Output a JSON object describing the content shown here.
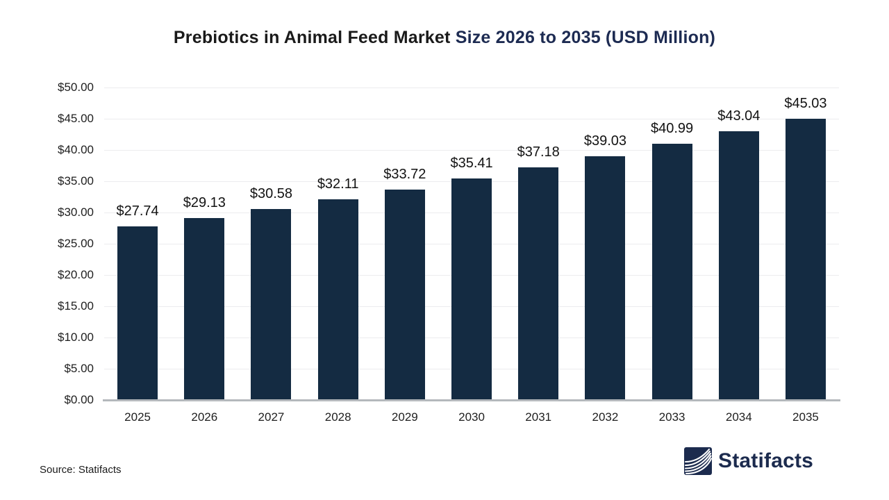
{
  "title": {
    "part1": "Prebiotics in Animal Feed Market ",
    "part2": "Size 2026 to 2035 (USD Million)"
  },
  "chart_data": {
    "type": "bar",
    "title": "Prebiotics in Animal Feed Market Size 2026 to 2035 (USD Million)",
    "categories": [
      "2025",
      "2026",
      "2027",
      "2028",
      "2029",
      "2030",
      "2031",
      "2032",
      "2033",
      "2034",
      "2035"
    ],
    "values": [
      27.74,
      29.13,
      30.58,
      32.11,
      33.72,
      35.41,
      37.18,
      39.03,
      40.99,
      43.04,
      45.03
    ],
    "value_labels": [
      "$27.74",
      "$29.13",
      "$30.58",
      "$32.11",
      "$33.72",
      "$35.41",
      "$37.18",
      "$39.03",
      "$40.99",
      "$43.04",
      "$45.03"
    ],
    "xlabel": "",
    "ylabel": "",
    "ylim": [
      0,
      50
    ],
    "ytick_values": [
      0,
      5,
      10,
      15,
      20,
      25,
      30,
      35,
      40,
      45,
      50
    ],
    "ytick_labels": [
      "$0.00",
      "$5.00",
      "$10.00",
      "$15.00",
      "$20.00",
      "$25.00",
      "$30.00",
      "$35.00",
      "$40.00",
      "$45.00",
      "$50.00"
    ],
    "grid": true,
    "legend": false,
    "bar_color": "#142b42",
    "unit": "USD Million"
  },
  "footer": {
    "source_label": "Source: Statifacts",
    "brand": "Statifacts"
  },
  "colors": {
    "title_accent": "#1d2b52",
    "bar": "#142b42",
    "gridline": "#ececee",
    "axis_line": "#b4b8bc",
    "text": "#1a1a1a",
    "brand_navy": "#1c2b4e",
    "background": "#ffffff"
  }
}
